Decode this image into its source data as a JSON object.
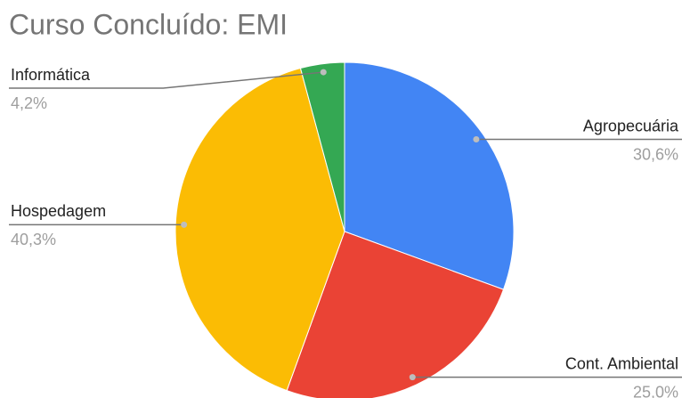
{
  "chart_data": {
    "type": "pie",
    "title": "Curso Concluído: EMI",
    "categories": [
      "Agropecuária",
      "Cont. Ambiental",
      "Hospedagem",
      "Informática"
    ],
    "values": [
      30.6,
      25.0,
      40.3,
      4.2
    ],
    "value_labels": [
      "30,6%",
      "25,0%",
      "40,3%",
      "4,2%"
    ],
    "colors": [
      "#4285f4",
      "#ea4335",
      "#fbbc04",
      "#34a853"
    ]
  }
}
